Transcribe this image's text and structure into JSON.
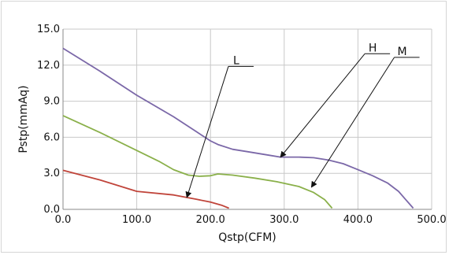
{
  "chart_data": {
    "type": "line",
    "xlabel": "Qstp(CFM)",
    "ylabel": "Pstp(mmAq)",
    "xlim": [
      0,
      500
    ],
    "ylim": [
      0,
      15
    ],
    "x_ticks": [
      "0.0",
      "100.0",
      "200.0",
      "300.0",
      "400.0",
      "500.0"
    ],
    "y_ticks": [
      "0.0",
      "3.0",
      "6.0",
      "9.0",
      "12.0",
      "15.0"
    ],
    "grid": true,
    "series": [
      {
        "name": "H",
        "color": "#7b68a8",
        "points": [
          [
            0,
            13.4
          ],
          [
            50,
            11.5
          ],
          [
            100,
            9.5
          ],
          [
            150,
            7.7
          ],
          [
            180,
            6.5
          ],
          [
            200,
            5.7
          ],
          [
            210,
            5.4
          ],
          [
            230,
            5.0
          ],
          [
            250,
            4.8
          ],
          [
            280,
            4.5
          ],
          [
            295,
            4.35
          ],
          [
            320,
            4.35
          ],
          [
            340,
            4.3
          ],
          [
            360,
            4.1
          ],
          [
            380,
            3.8
          ],
          [
            400,
            3.3
          ],
          [
            420,
            2.8
          ],
          [
            440,
            2.2
          ],
          [
            455,
            1.5
          ],
          [
            465,
            0.8
          ],
          [
            475,
            0.1
          ]
        ]
      },
      {
        "name": "M",
        "color": "#8ab04a",
        "points": [
          [
            0,
            7.8
          ],
          [
            50,
            6.4
          ],
          [
            100,
            4.9
          ],
          [
            130,
            4.0
          ],
          [
            150,
            3.3
          ],
          [
            170,
            2.85
          ],
          [
            185,
            2.75
          ],
          [
            200,
            2.8
          ],
          [
            210,
            2.95
          ],
          [
            230,
            2.85
          ],
          [
            260,
            2.6
          ],
          [
            290,
            2.3
          ],
          [
            320,
            1.9
          ],
          [
            340,
            1.4
          ],
          [
            355,
            0.8
          ],
          [
            365,
            0.1
          ]
        ]
      },
      {
        "name": "L",
        "color": "#c0443a",
        "points": [
          [
            0,
            3.25
          ],
          [
            50,
            2.45
          ],
          [
            100,
            1.5
          ],
          [
            150,
            1.2
          ],
          [
            180,
            0.85
          ],
          [
            200,
            0.6
          ],
          [
            215,
            0.35
          ],
          [
            225,
            0.1
          ]
        ]
      }
    ],
    "annotations": [
      {
        "text": "H",
        "label_x": 420,
        "label_y": 12.95,
        "arrow_to": [
          295,
          4.35
        ]
      },
      {
        "text": "M",
        "label_x": 460,
        "label_y": 12.65,
        "arrow_to": [
          337,
          1.85
        ]
      },
      {
        "text": "L",
        "label_x": 235,
        "label_y": 11.9,
        "arrow_to": [
          168,
          1.0
        ]
      }
    ]
  }
}
